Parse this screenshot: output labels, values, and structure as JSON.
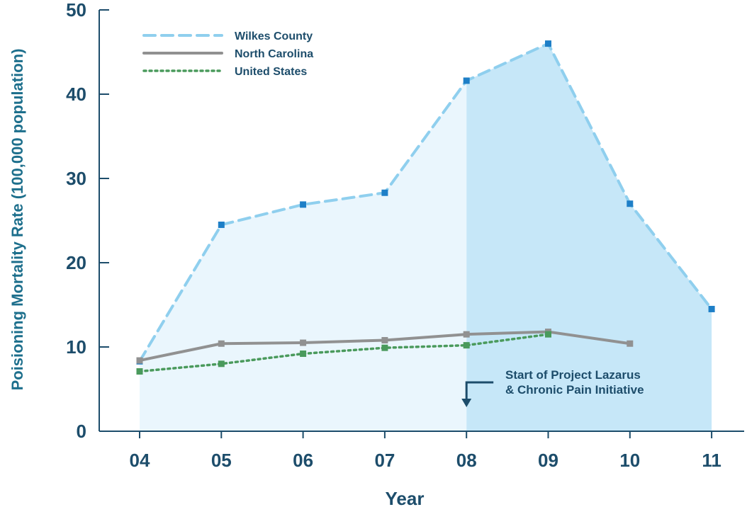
{
  "chart_data": {
    "type": "line",
    "title": "",
    "xlabel": "Year",
    "ylabel": "Poisioning Mortality Rate (100,000 population)",
    "categories": [
      "04",
      "05",
      "06",
      "07",
      "08",
      "09",
      "10",
      "11"
    ],
    "ylim": [
      0,
      50
    ],
    "yticks": [
      0,
      10,
      20,
      30,
      40,
      50
    ],
    "grid": false,
    "legend_position": "top-left",
    "series": [
      {
        "name": "Wilkes County",
        "values": [
          8.3,
          24.5,
          26.9,
          28.3,
          41.6,
          46.0,
          27.0,
          14.5
        ],
        "color": "#8fcfee",
        "marker_color": "#1e7fc7",
        "line_style": "dashed"
      },
      {
        "name": "North Carolina",
        "values": [
          8.4,
          10.4,
          10.5,
          10.8,
          11.5,
          11.8,
          10.4,
          null
        ],
        "color": "#919191",
        "marker_color": "#919191",
        "line_style": "solid"
      },
      {
        "name": "United States",
        "values": [
          7.1,
          8.0,
          9.2,
          9.9,
          10.2,
          11.5,
          null,
          null
        ],
        "color": "#4a9a5c",
        "marker_color": "#4a9a5c",
        "line_style": "dotted"
      }
    ],
    "shading": {
      "pre_color": "#eaf6fd",
      "post_color": "#c6e7f8",
      "split_category": "08"
    },
    "annotation": {
      "line1": "Start of Project Lazarus",
      "line2": "& Chronic Pain Initiative",
      "at_category": "08"
    },
    "axis_color": "#1d4d6b"
  }
}
